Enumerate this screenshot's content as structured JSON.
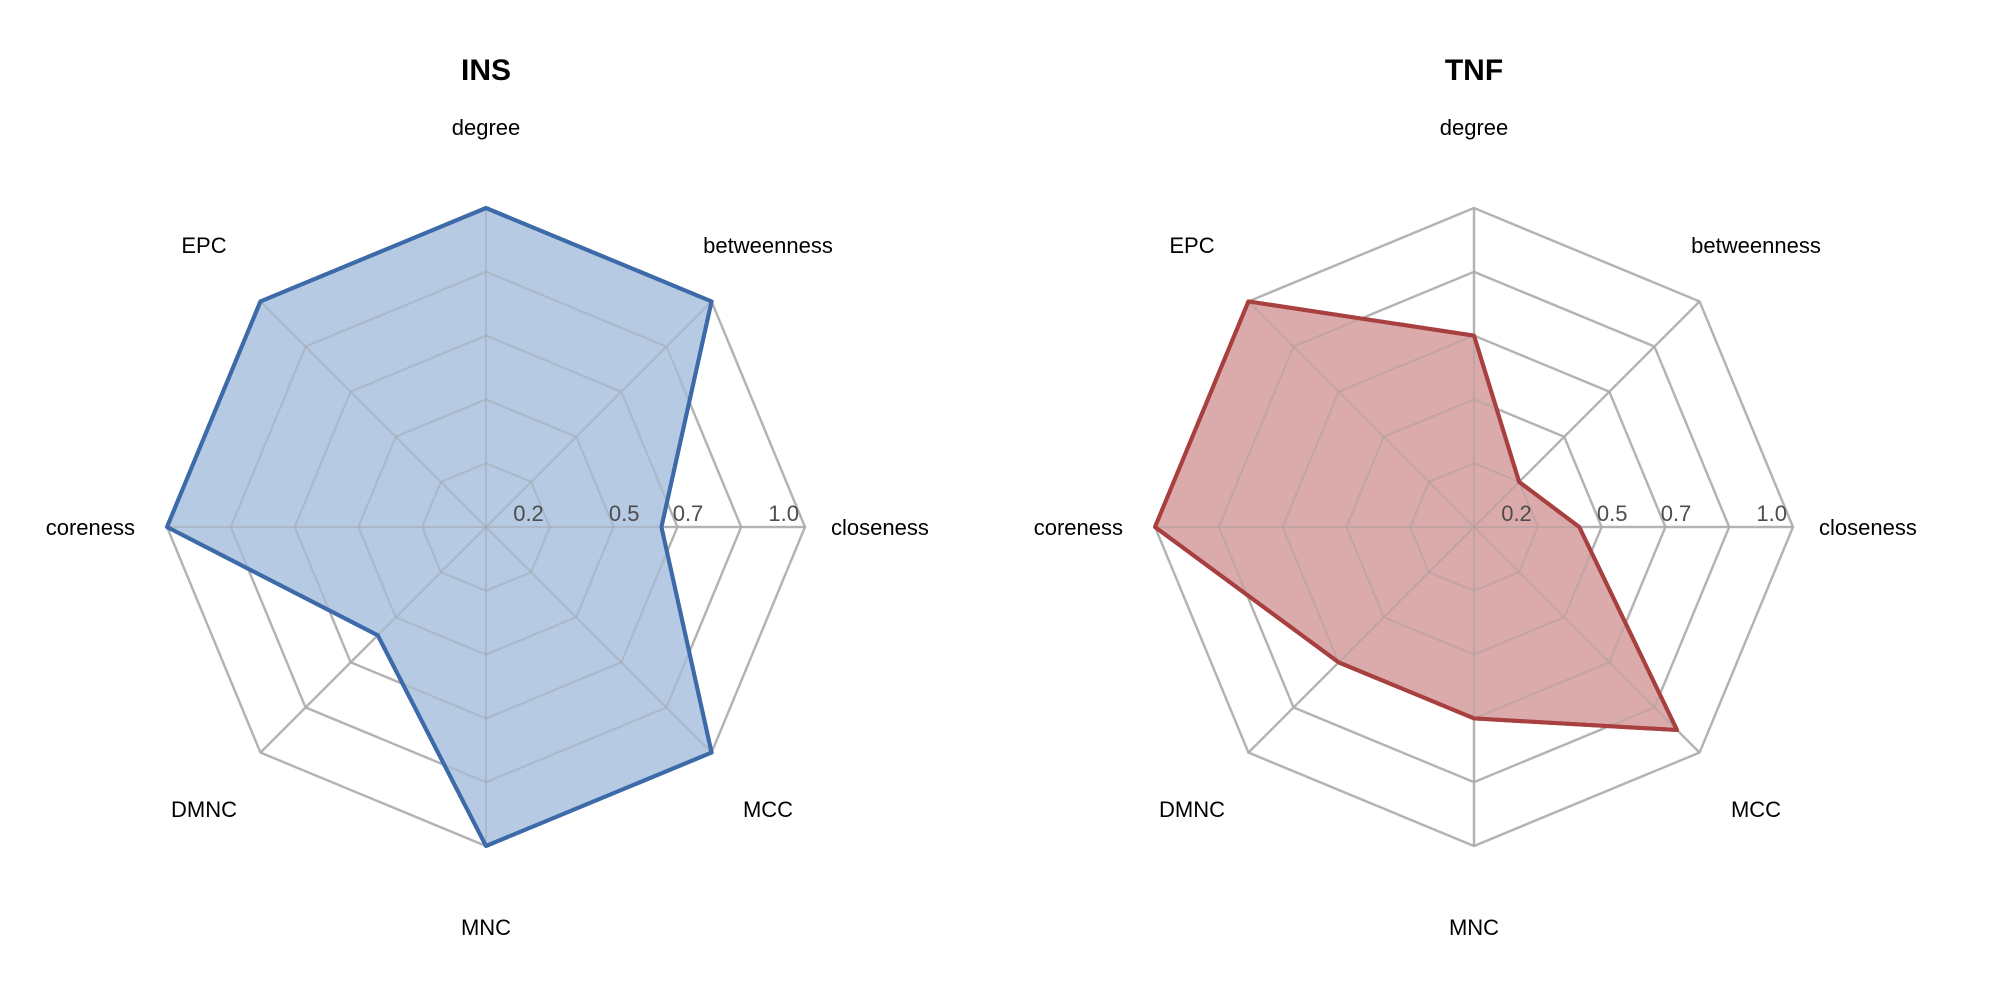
{
  "chart_data": [
    {
      "type": "radar",
      "title": "INS",
      "axes": [
        "degree",
        "betweenness",
        "closeness",
        "MCC",
        "MNC",
        "DMNC",
        "coreness",
        "EPC"
      ],
      "values": [
        1.0,
        1.0,
        0.55,
        1.0,
        1.0,
        0.48,
        1.0,
        1.0
      ],
      "range": [
        0,
        1
      ],
      "ticks": [
        0.2,
        0.5,
        0.7,
        1.0
      ],
      "tick_labels": [
        "0.2",
        "0.5",
        "0.7",
        "1.0"
      ],
      "grid_levels": [
        0.2,
        0.4,
        0.6,
        0.8,
        1.0
      ],
      "line_color": "#3d6aa8",
      "fill_color": "#b2c7e3"
    },
    {
      "type": "radar",
      "title": "TNF",
      "axes": [
        "degree",
        "betweenness",
        "closeness",
        "MCC",
        "MNC",
        "DMNC",
        "coreness",
        "EPC"
      ],
      "values": [
        0.6,
        0.2,
        0.33,
        0.9,
        0.6,
        0.6,
        1.0,
        1.0
      ],
      "range": [
        0,
        1
      ],
      "ticks": [
        0.2,
        0.5,
        0.7,
        1.0
      ],
      "tick_labels": [
        "0.2",
        "0.5",
        "0.7",
        "1.0"
      ],
      "grid_levels": [
        0.2,
        0.4,
        0.6,
        0.8,
        1.0
      ],
      "line_color": "#a84040",
      "fill_color": "#d9a6a7"
    }
  ]
}
